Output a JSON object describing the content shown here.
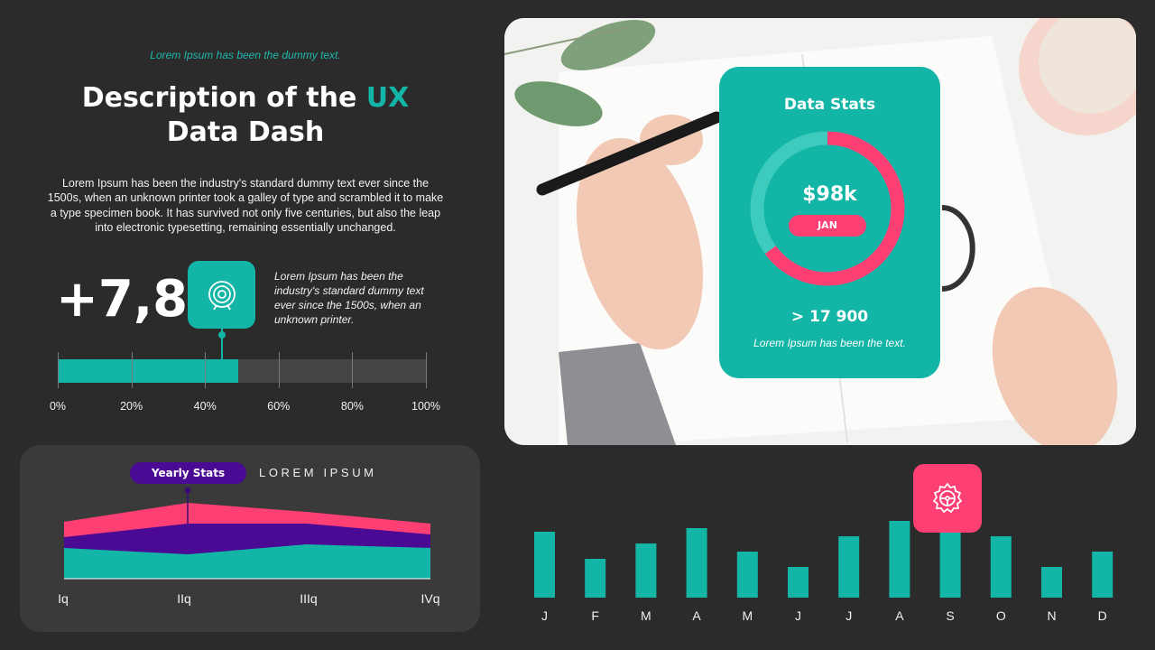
{
  "header": {
    "tagline": "Lorem Ipsum has been the dummy text.",
    "title_part1": "Description of the ",
    "title_accent": "UX",
    "title_part2": "Data Dash",
    "description": "Lorem Ipsum has been the industry's standard dummy text ever since the 1500s, when an unknown printer took a galley of type and scrambled it to make a type specimen book. It has survived not only five centuries, but also the leap into electronic typesetting, remaining essentially unchanged."
  },
  "metric": {
    "value": "+7,8",
    "icon": "target-icon",
    "text": "Lorem Ipsum has been the industry's standard dummy text ever since the 1500s, when an unknown printer."
  },
  "progress": {
    "value_percent": 49,
    "tick_labels": [
      "0%",
      "20%",
      "40%",
      "60%",
      "80%",
      "100%"
    ]
  },
  "yearly": {
    "badge": "Yearly Stats",
    "heading": "LOREM IPSUM",
    "quarters": [
      "Iq",
      "IIq",
      "IIIq",
      "IVq"
    ]
  },
  "card": {
    "title": "Data Stats",
    "donut_value": "$98k",
    "month": "JAN",
    "number": "> 17 900",
    "note": "Lorem Ipsum has been the text.",
    "donut_fraction": 0.65
  },
  "chart_data": {
    "type": "bar",
    "categories": [
      "J",
      "F",
      "M",
      "A",
      "M",
      "J",
      "J",
      "A",
      "S",
      "O",
      "N",
      "D"
    ],
    "values": [
      73,
      43,
      60,
      77,
      51,
      34,
      68,
      85,
      73,
      68,
      34,
      51
    ],
    "ylim": [
      0,
      100
    ],
    "highlight_icon": "gear-icon"
  },
  "colors": {
    "background": "#2b2b2b",
    "teal": "#12b5a6",
    "pink": "#fe3f74",
    "purple": "#4a0a93"
  }
}
